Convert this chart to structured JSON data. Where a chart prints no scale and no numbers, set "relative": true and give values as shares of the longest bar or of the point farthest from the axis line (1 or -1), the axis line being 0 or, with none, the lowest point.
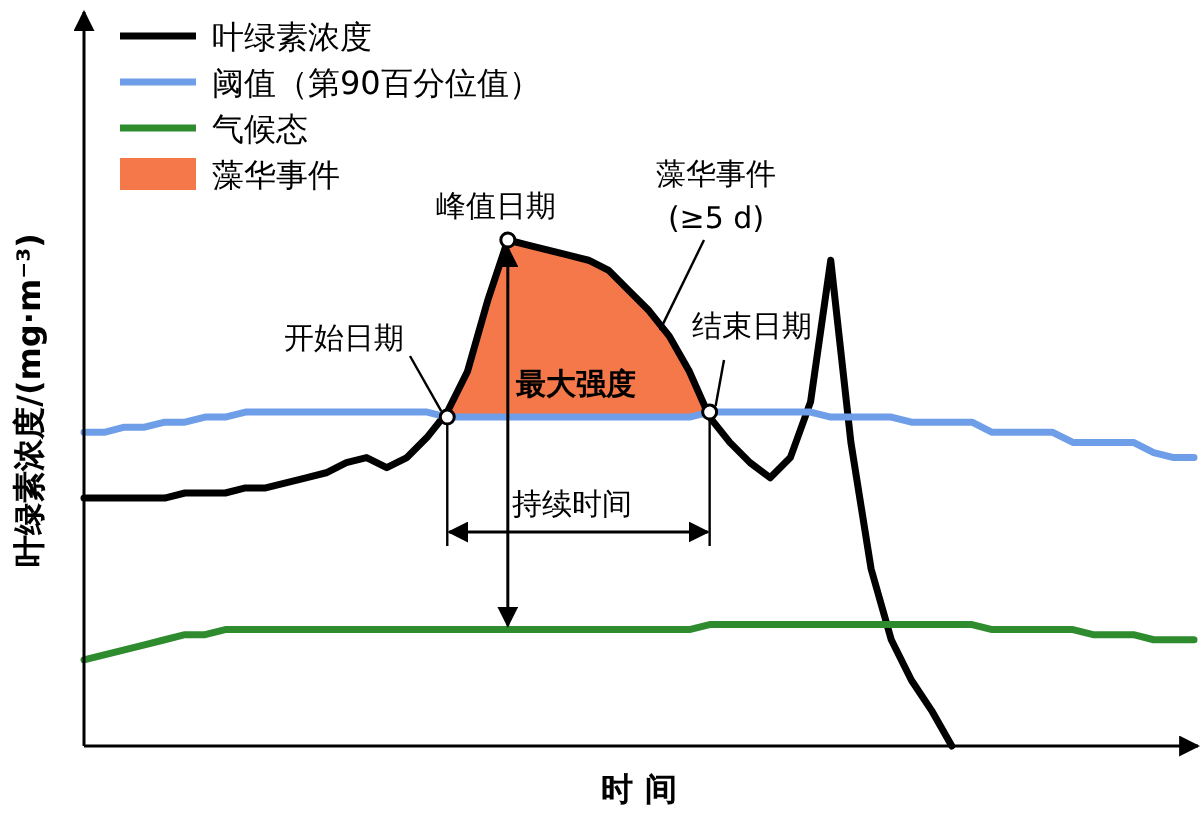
{
  "chart_data": {
    "type": "line",
    "relative": true,
    "xlabel": "时 间",
    "ylabel": "叶绿素浓度/(mg·m⁻³)",
    "legend": "top left",
    "categories": [
      null,
      null,
      null,
      null,
      null,
      null,
      null,
      null,
      null,
      null,
      null,
      null,
      null,
      null,
      null,
      null,
      null,
      null,
      null,
      null,
      null,
      null,
      null,
      null,
      null,
      null,
      null,
      null,
      null,
      null,
      null,
      null,
      null,
      null,
      null,
      null,
      null,
      null,
      null,
      null,
      null,
      null,
      null,
      null,
      null,
      null,
      null,
      null,
      null,
      null,
      null,
      null,
      null,
      null,
      null,
      null
    ],
    "series": [
      {
        "name": "叶绿素浓度",
        "color": "#000000",
        "values": [
          0.49,
          0.49,
          0.49,
          0.49,
          0.49,
          0.5,
          0.5,
          0.5,
          0.51,
          0.51,
          0.52,
          0.53,
          0.54,
          0.56,
          0.57,
          0.55,
          0.57,
          0.61,
          0.66,
          0.74,
          0.88,
          1.0,
          0.99,
          0.98,
          0.97,
          0.96,
          0.94,
          0.9,
          0.86,
          0.81,
          0.74,
          0.65,
          0.6,
          0.56,
          0.53,
          0.57,
          0.68,
          0.96,
          0.6,
          0.35,
          0.21,
          0.13,
          0.07,
          0,
          null,
          null,
          null,
          null,
          null,
          null,
          null,
          null,
          null,
          null,
          null,
          null
        ]
      },
      {
        "name": "阈值（第90百分位值）",
        "color": "#6f9ee8",
        "values": [
          0.62,
          0.62,
          0.63,
          0.63,
          0.64,
          0.64,
          0.65,
          0.65,
          0.66,
          0.66,
          0.66,
          0.66,
          0.66,
          0.66,
          0.66,
          0.66,
          0.66,
          0.66,
          0.65,
          0.65,
          0.65,
          0.65,
          0.65,
          0.65,
          0.65,
          0.65,
          0.65,
          0.65,
          0.65,
          0.65,
          0.65,
          0.66,
          0.66,
          0.66,
          0.66,
          0.66,
          0.66,
          0.65,
          0.65,
          0.65,
          0.65,
          0.64,
          0.64,
          0.64,
          0.64,
          0.62,
          0.62,
          0.62,
          0.62,
          0.6,
          0.6,
          0.6,
          0.6,
          0.58,
          0.57,
          0.57
        ]
      },
      {
        "name": "气候态",
        "color": "#2e8b2e",
        "values": [
          0.17,
          0.18,
          0.19,
          0.2,
          0.21,
          0.22,
          0.22,
          0.23,
          0.23,
          0.23,
          0.23,
          0.23,
          0.23,
          0.23,
          0.23,
          0.23,
          0.23,
          0.23,
          0.23,
          0.23,
          0.23,
          0.23,
          0.23,
          0.23,
          0.23,
          0.23,
          0.23,
          0.23,
          0.23,
          0.23,
          0.23,
          0.24,
          0.24,
          0.24,
          0.24,
          0.24,
          0.24,
          0.24,
          0.24,
          0.24,
          0.24,
          0.24,
          0.24,
          0.24,
          0.24,
          0.23,
          0.23,
          0.23,
          0.23,
          0.23,
          0.22,
          0.22,
          0.22,
          0.21,
          0.21,
          0.21
        ]
      },
      {
        "name": "藻华事件",
        "type": "area",
        "color": "#f4784a",
        "values": [
          null,
          null,
          null,
          null,
          null,
          null,
          null,
          null,
          null,
          null,
          null,
          null,
          null,
          null,
          null,
          null,
          null,
          null,
          0.66,
          0.74,
          0.88,
          1.0,
          0.99,
          0.98,
          0.97,
          0.96,
          0.94,
          0.9,
          0.86,
          0.81,
          0.74,
          0.65,
          null,
          null,
          null,
          null,
          null,
          null,
          null,
          null,
          null,
          null,
          null,
          null,
          null,
          null,
          null,
          null,
          null,
          null,
          null,
          null,
          null,
          null,
          null,
          null
        ]
      }
    ],
    "annotations": [
      "峰值日期",
      "藻华事件",
      "(≥5 d)",
      "开始日期",
      "结束日期",
      "最大强度",
      "持续时间"
    ]
  }
}
